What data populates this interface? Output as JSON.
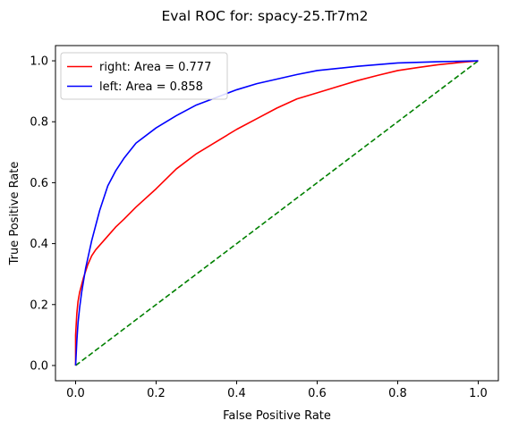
{
  "chart_data": {
    "type": "line",
    "title": "Eval ROC for: spacy-25.Tr7m2",
    "xlabel": "False Positive Rate",
    "ylabel": "True Positive Rate",
    "xlim": [
      -0.05,
      1.05
    ],
    "ylim": [
      -0.05,
      1.05
    ],
    "xticks": [
      0.0,
      0.2,
      0.4,
      0.6,
      0.8,
      1.0
    ],
    "yticks": [
      0.0,
      0.2,
      0.4,
      0.6,
      0.8,
      1.0
    ],
    "xtick_labels": [
      "0.0",
      "0.2",
      "0.4",
      "0.6",
      "0.8",
      "1.0"
    ],
    "ytick_labels": [
      "0.0",
      "0.2",
      "0.4",
      "0.6",
      "0.8",
      "1.0"
    ],
    "grid": false,
    "legend_position": "top-left",
    "series": [
      {
        "name": "right: Area = 0.777",
        "color": "#ff0000",
        "style": "solid",
        "x": [
          0.0,
          0.0,
          0.003,
          0.006,
          0.01,
          0.015,
          0.02,
          0.03,
          0.04,
          0.05,
          0.07,
          0.09,
          0.1,
          0.12,
          0.15,
          0.2,
          0.25,
          0.3,
          0.35,
          0.4,
          0.45,
          0.5,
          0.55,
          0.6,
          0.65,
          0.7,
          0.75,
          0.8,
          0.85,
          0.9,
          0.95,
          1.0
        ],
        "y": [
          0.0,
          0.1,
          0.17,
          0.21,
          0.24,
          0.265,
          0.29,
          0.33,
          0.36,
          0.38,
          0.41,
          0.44,
          0.455,
          0.48,
          0.52,
          0.58,
          0.645,
          0.695,
          0.735,
          0.775,
          0.81,
          0.845,
          0.875,
          0.895,
          0.915,
          0.935,
          0.952,
          0.968,
          0.978,
          0.987,
          0.994,
          1.0
        ]
      },
      {
        "name": "left: Area = 0.858",
        "color": "#0000ff",
        "style": "solid",
        "x": [
          0.0,
          0.003,
          0.006,
          0.01,
          0.015,
          0.02,
          0.025,
          0.03,
          0.04,
          0.05,
          0.06,
          0.07,
          0.08,
          0.1,
          0.12,
          0.15,
          0.2,
          0.25,
          0.3,
          0.35,
          0.4,
          0.45,
          0.5,
          0.55,
          0.6,
          0.7,
          0.8,
          0.9,
          1.0
        ],
        "y": [
          0.0,
          0.08,
          0.14,
          0.19,
          0.24,
          0.28,
          0.32,
          0.35,
          0.41,
          0.46,
          0.51,
          0.55,
          0.59,
          0.64,
          0.68,
          0.73,
          0.78,
          0.82,
          0.855,
          0.88,
          0.905,
          0.925,
          0.94,
          0.955,
          0.968,
          0.982,
          0.993,
          0.997,
          1.0
        ]
      },
      {
        "color": "#008000",
        "style": "dashed",
        "x": [
          0.0,
          1.0
        ],
        "y": [
          0.0,
          1.0
        ]
      }
    ]
  }
}
